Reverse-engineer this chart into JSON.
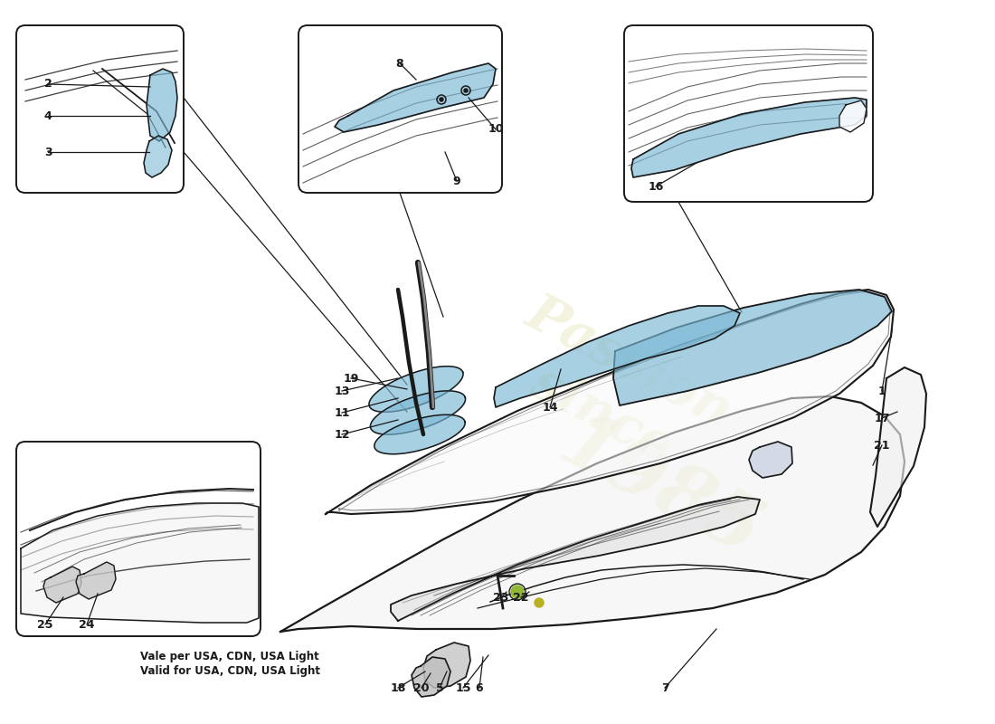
{
  "bg_color": "#ffffff",
  "lc": "#1a1a1a",
  "fc_blue": "#7ab8d4",
  "fc_blue_alpha": 0.65,
  "watermark_lines": [
    "Passion",
    "since",
    "1985"
  ],
  "watermark_color": "#e8e8c0",
  "watermark_alpha": 0.5,
  "footnote1": "Vale per USA, CDN, USA Light",
  "footnote2": "Valid for USA, CDN, USA Light",
  "boxes": {
    "b1": [
      18,
      28,
      185,
      185
    ],
    "b2": [
      330,
      28,
      225,
      185
    ],
    "b3": [
      690,
      28,
      275,
      195
    ],
    "b4": [
      18,
      488,
      270,
      215
    ]
  }
}
